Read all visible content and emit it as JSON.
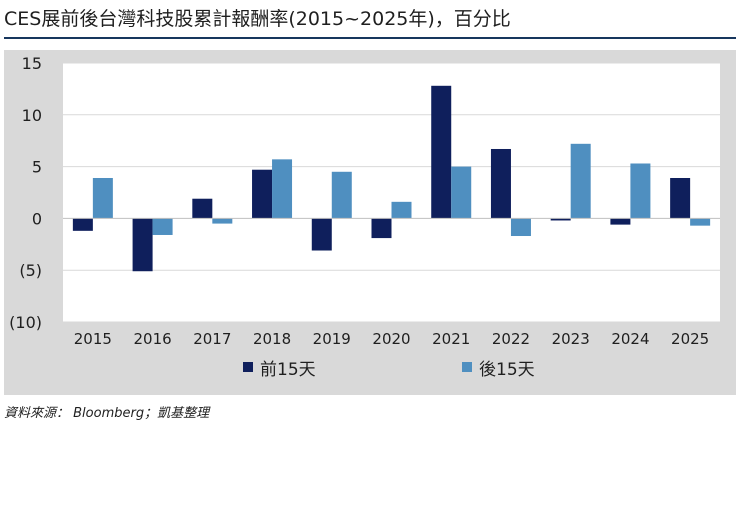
{
  "title": "CES展前後台灣科技股累計報酬率(2015~2025年)，百分比",
  "source": "資料來源： Bloomberg；凱基整理",
  "colors": {
    "series1": "#0f1f5c",
    "series2": "#4f8fc0",
    "panel": "#d9d9d9",
    "plot": "#ffffff",
    "rule": "#17365d"
  },
  "chart_data": {
    "type": "bar",
    "title": "CES展前後台灣科技股累計報酬率(2015~2025年)，百分比",
    "xlabel": "",
    "ylabel": "",
    "ylim": [
      -10,
      15
    ],
    "yticks": [
      15,
      10,
      5,
      0,
      -5,
      -10
    ],
    "ytick_labels": [
      "15",
      "10",
      "5",
      "0",
      "(5)",
      "(10)"
    ],
    "grid": true,
    "legend_position": "bottom",
    "categories": [
      "2015",
      "2016",
      "2017",
      "2018",
      "2019",
      "2020",
      "2021",
      "2022",
      "2023",
      "2024",
      "2025"
    ],
    "series": [
      {
        "name": "前15天",
        "values": [
          -1.2,
          -5.1,
          1.9,
          4.7,
          -3.1,
          -1.9,
          12.8,
          6.7,
          -0.2,
          -0.6,
          3.9
        ]
      },
      {
        "name": "後15天",
        "values": [
          3.9,
          -1.6,
          -0.5,
          5.7,
          4.5,
          1.6,
          5.0,
          -1.7,
          7.2,
          5.3,
          -0.7
        ]
      }
    ]
  }
}
